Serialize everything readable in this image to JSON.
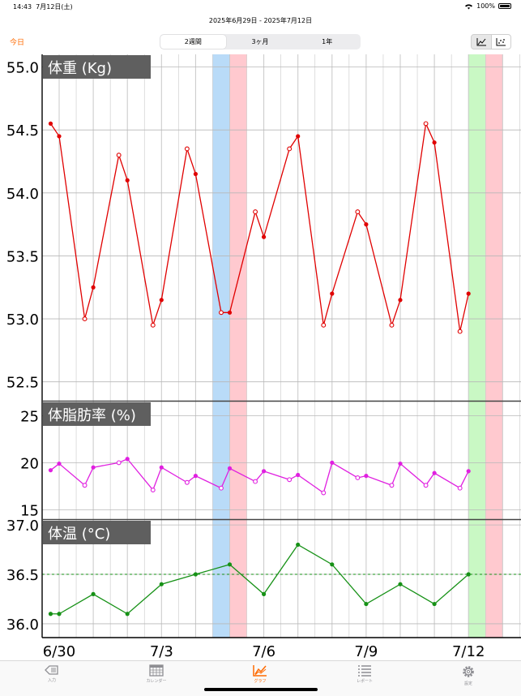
{
  "status": {
    "time": "14:43",
    "date": "7月12日(土)",
    "battery": "100%",
    "wifi_icon": "wifi-icon"
  },
  "header": {
    "range": "2025年6月29日 - 2025年7月12日",
    "today": "今日",
    "periods": [
      "2週間",
      "3ヶ月",
      "1年"
    ],
    "selected_period": "2週間"
  },
  "tabs": [
    {
      "label": "入力",
      "icon": "input-icon"
    },
    {
      "label": "カレンダー",
      "icon": "calendar-icon"
    },
    {
      "label": "グラフ",
      "icon": "graph-icon"
    },
    {
      "label": "レポート",
      "icon": "report-icon"
    },
    {
      "label": "設定",
      "icon": "gear-icon"
    }
  ],
  "colors": {
    "accent": "#ff6a00",
    "weight": "#e00000",
    "fat": "#e020e0",
    "temp": "#169116",
    "blue_band": "#b9dbf8",
    "pink_band": "#ffc9cf",
    "green_band": "#c9f8c4"
  },
  "chart_data": {
    "type": "line",
    "x_labels": [
      "6/30",
      "7/3",
      "7/6",
      "7/9",
      "7/12"
    ],
    "bands": [
      {
        "from": 4.5,
        "to": 5.0,
        "color": "blue"
      },
      {
        "from": 5.0,
        "to": 5.5,
        "color": "pink"
      },
      {
        "from": 12.0,
        "to": 12.5,
        "color": "green"
      },
      {
        "from": 12.5,
        "to": 13.0,
        "color": "pink"
      }
    ],
    "panels": [
      {
        "title": "体重 (Kg)",
        "ylim": [
          52.35,
          55.1
        ],
        "ticks": [
          55.0,
          54.5,
          54.0,
          53.5,
          53.0,
          52.5
        ],
        "tick_labels": [
          "55.0",
          "54.5",
          "54.0",
          "53.5",
          "53.0",
          "52.5"
        ],
        "points": [
          {
            "x": -0.25,
            "y": 54.55,
            "open": false
          },
          {
            "x": 0.0,
            "y": 54.45,
            "open": false
          },
          {
            "x": 0.75,
            "y": 53.0,
            "open": true
          },
          {
            "x": 1.0,
            "y": 53.25,
            "open": false
          },
          {
            "x": 1.75,
            "y": 54.3,
            "open": true
          },
          {
            "x": 2.0,
            "y": 54.1,
            "open": false
          },
          {
            "x": 2.75,
            "y": 52.95,
            "open": true
          },
          {
            "x": 3.0,
            "y": 53.15,
            "open": false
          },
          {
            "x": 3.75,
            "y": 54.35,
            "open": true
          },
          {
            "x": 4.0,
            "y": 54.15,
            "open": false
          },
          {
            "x": 4.75,
            "y": 53.05,
            "open": true
          },
          {
            "x": 5.0,
            "y": 53.05,
            "open": false
          },
          {
            "x": 5.75,
            "y": 53.85,
            "open": true
          },
          {
            "x": 6.0,
            "y": 53.65,
            "open": false
          },
          {
            "x": 6.75,
            "y": 54.35,
            "open": true
          },
          {
            "x": 7.0,
            "y": 54.45,
            "open": false
          },
          {
            "x": 7.75,
            "y": 52.95,
            "open": true
          },
          {
            "x": 8.0,
            "y": 53.2,
            "open": false
          },
          {
            "x": 8.75,
            "y": 53.85,
            "open": true
          },
          {
            "x": 9.0,
            "y": 53.75,
            "open": false
          },
          {
            "x": 9.75,
            "y": 52.95,
            "open": true
          },
          {
            "x": 10.0,
            "y": 53.15,
            "open": false
          },
          {
            "x": 10.75,
            "y": 54.55,
            "open": true
          },
          {
            "x": 11.0,
            "y": 54.4,
            "open": false
          },
          {
            "x": 11.75,
            "y": 52.9,
            "open": true
          },
          {
            "x": 12.0,
            "y": 53.2,
            "open": false
          }
        ]
      },
      {
        "title": "体脂肪率 (%)",
        "ylim": [
          14,
          26.5
        ],
        "ticks": [
          25,
          20,
          15
        ],
        "tick_labels": [
          "25",
          "20",
          "15"
        ],
        "points": [
          {
            "x": -0.25,
            "y": 19.2,
            "open": false
          },
          {
            "x": 0.0,
            "y": 19.9,
            "open": false
          },
          {
            "x": 0.75,
            "y": 17.6,
            "open": true
          },
          {
            "x": 1.0,
            "y": 19.5,
            "open": false
          },
          {
            "x": 1.75,
            "y": 20.0,
            "open": true
          },
          {
            "x": 2.0,
            "y": 20.4,
            "open": false
          },
          {
            "x": 2.75,
            "y": 17.1,
            "open": true
          },
          {
            "x": 3.0,
            "y": 19.5,
            "open": false
          },
          {
            "x": 3.75,
            "y": 17.9,
            "open": true
          },
          {
            "x": 4.0,
            "y": 18.6,
            "open": false
          },
          {
            "x": 4.75,
            "y": 17.3,
            "open": true
          },
          {
            "x": 5.0,
            "y": 19.4,
            "open": false
          },
          {
            "x": 5.75,
            "y": 18.0,
            "open": true
          },
          {
            "x": 6.0,
            "y": 19.1,
            "open": false
          },
          {
            "x": 6.75,
            "y": 18.2,
            "open": true
          },
          {
            "x": 7.0,
            "y": 18.7,
            "open": false
          },
          {
            "x": 7.75,
            "y": 16.8,
            "open": true
          },
          {
            "x": 8.0,
            "y": 20.0,
            "open": false
          },
          {
            "x": 8.75,
            "y": 18.4,
            "open": true
          },
          {
            "x": 9.0,
            "y": 18.6,
            "open": false
          },
          {
            "x": 9.75,
            "y": 17.6,
            "open": true
          },
          {
            "x": 10.0,
            "y": 19.9,
            "open": false
          },
          {
            "x": 10.75,
            "y": 17.6,
            "open": true
          },
          {
            "x": 11.0,
            "y": 18.9,
            "open": false
          },
          {
            "x": 11.75,
            "y": 17.3,
            "open": true
          },
          {
            "x": 12.0,
            "y": 19.1,
            "open": false
          }
        ]
      },
      {
        "title": "体温 (°C)",
        "ylim": [
          35.86,
          37.05
        ],
        "ticks": [
          37.0,
          36.5,
          36.0
        ],
        "tick_labels": [
          "37.0",
          "36.5",
          "36.0"
        ],
        "reference_line": 36.5,
        "points": [
          {
            "x": -0.25,
            "y": 36.1
          },
          {
            "x": 0.0,
            "y": 36.1
          },
          {
            "x": 1.0,
            "y": 36.3
          },
          {
            "x": 2.0,
            "y": 36.1
          },
          {
            "x": 3.0,
            "y": 36.4
          },
          {
            "x": 4.0,
            "y": 36.5
          },
          {
            "x": 5.0,
            "y": 36.6
          },
          {
            "x": 6.0,
            "y": 36.3
          },
          {
            "x": 7.0,
            "y": 36.8
          },
          {
            "x": 8.0,
            "y": 36.6
          },
          {
            "x": 9.0,
            "y": 36.2
          },
          {
            "x": 10.0,
            "y": 36.4
          },
          {
            "x": 11.0,
            "y": 36.2
          },
          {
            "x": 12.0,
            "y": 36.5
          }
        ]
      }
    ]
  }
}
